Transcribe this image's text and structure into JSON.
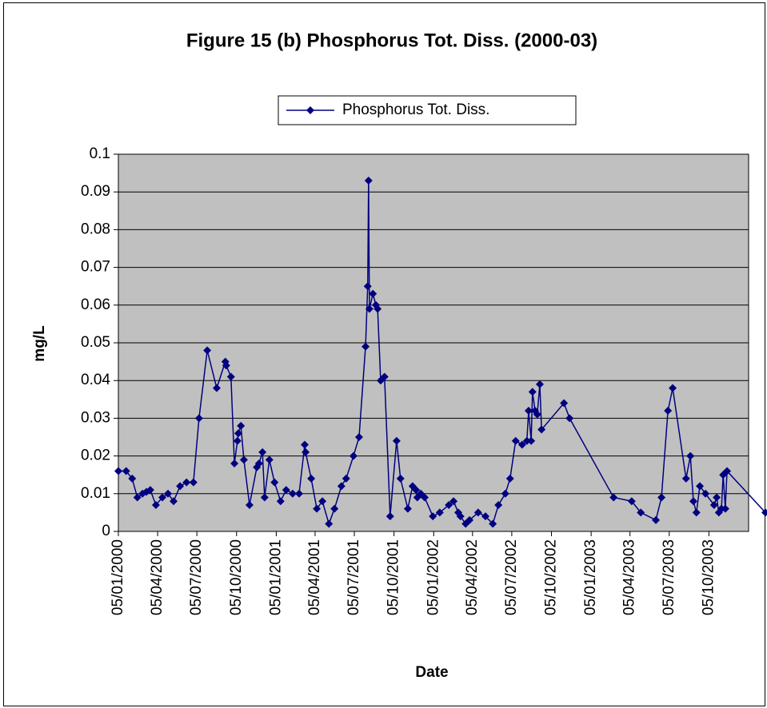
{
  "chart_data": {
    "type": "line",
    "title": "Figure 15 (b) Phosphorus Tot. Diss. (2000-03)",
    "x_label": "Date",
    "y_label": "mg/L",
    "x": [
      "05/01/2000",
      "23/01/2000",
      "06/02/2000",
      "18/02/2000",
      "01/03/2000",
      "10/03/2000",
      "19/03/2000",
      "01/04/2000",
      "16/04/2000",
      "29/04/2000",
      "12/05/2000",
      "27/05/2000",
      "11/06/2000",
      "27/06/2000",
      "10/07/2000",
      "29/07/2000",
      "20/08/2000",
      "09/09/2000",
      "11/09/2000",
      "22/09/2000",
      "30/09/2000",
      "07/10/2000",
      "09/10/2000",
      "15/10/2000",
      "22/10/2000",
      "04/11/2000",
      "21/11/2000",
      "26/11/2000",
      "04/12/2000",
      "09/12/2000",
      "20/12/2000",
      "01/01/2001",
      "15/01/2001",
      "28/01/2001",
      "12/02/2001",
      "27/02/2001",
      "12/03/2001",
      "14/03/2001",
      "27/03/2001",
      "09/04/2001",
      "22/04/2001",
      "07/05/2001",
      "20/05/2001",
      "05/06/2001",
      "16/06/2001",
      "03/07/2001",
      "16/07/2001",
      "31/07/2001",
      "05/08/2001",
      "07/08/2001",
      "09/08/2001",
      "17/08/2001",
      "24/08/2001",
      "28/08/2001",
      "04/09/2001",
      "13/09/2001",
      "26/09/2001",
      "11/10/2001",
      "20/10/2001",
      "06/11/2001",
      "17/11/2001",
      "25/11/2001",
      "28/11/2001",
      "06/12/2001",
      "15/12/2001",
      "03/01/2002",
      "19/01/2002",
      "09/02/2002",
      "20/02/2002",
      "03/03/2002",
      "08/03/2002",
      "20/03/2002",
      "29/03/2002",
      "18/04/2002",
      "05/05/2002",
      "22/05/2002",
      "04/06/2002",
      "20/06/2002",
      "01/07/2002",
      "14/07/2002",
      "29/07/2002",
      "09/08/2002",
      "13/08/2002",
      "19/08/2002",
      "22/08/2002",
      "28/08/2002",
      "02/09/2002",
      "08/09/2002",
      "12/09/2002",
      "03/11/2002",
      "16/11/2002",
      "26/02/2003",
      "09/04/2003",
      "30/04/2003",
      "04/06/2003",
      "17/06/2003",
      "02/07/2003",
      "13/07/2003",
      "13/08/2003",
      "23/08/2003",
      "30/08/2003",
      "06/09/2003",
      "14/09/2003",
      "27/09/2003",
      "17/10/2003",
      "23/10/2003",
      "28/10/2003",
      "03/11/2003",
      "07/11/2003",
      "12/11/2003",
      "16/11/2003",
      "13/02/2004"
    ],
    "series": [
      {
        "name": "Phosphorus Tot. Diss.",
        "color": "#000080",
        "values": [
          0.016,
          0.016,
          0.014,
          0.009,
          0.01,
          0.0105,
          0.011,
          0.007,
          0.009,
          0.01,
          0.008,
          0.012,
          0.013,
          0.013,
          0.03,
          0.048,
          0.038,
          0.045,
          0.044,
          0.041,
          0.018,
          0.024,
          0.026,
          0.028,
          0.019,
          0.007,
          0.017,
          0.018,
          0.021,
          0.009,
          0.019,
          0.013,
          0.008,
          0.011,
          0.01,
          0.01,
          0.023,
          0.021,
          0.014,
          0.006,
          0.008,
          0.002,
          0.006,
          0.012,
          0.014,
          0.02,
          0.025,
          0.049,
          0.065,
          0.093,
          0.059,
          0.063,
          0.06,
          0.059,
          0.04,
          0.041,
          0.004,
          0.024,
          0.014,
          0.006,
          0.012,
          0.011,
          0.009,
          0.01,
          0.009,
          0.004,
          0.005,
          0.007,
          0.008,
          0.005,
          0.004,
          0.002,
          0.003,
          0.005,
          0.004,
          0.002,
          0.007,
          0.01,
          0.014,
          0.024,
          0.023,
          0.024,
          0.032,
          0.024,
          0.037,
          0.032,
          0.031,
          0.039,
          0.027,
          0.034,
          0.03,
          0.009,
          0.008,
          0.005,
          0.003,
          0.009,
          0.032,
          0.038,
          0.014,
          0.02,
          0.008,
          0.005,
          0.012,
          0.01,
          0.007,
          0.009,
          0.005,
          0.006,
          0.015,
          0.006,
          0.016,
          0.005
        ]
      }
    ],
    "xlim": [
      "05/01/2000",
      "05/01/2004"
    ],
    "xticks": [
      "05/01/2000",
      "05/04/2000",
      "05/07/2000",
      "05/10/2000",
      "05/01/2001",
      "05/04/2001",
      "05/07/2001",
      "05/10/2001",
      "05/01/2002",
      "05/04/2002",
      "05/07/2002",
      "05/10/2002",
      "05/01/2003",
      "05/04/2003",
      "05/07/2003",
      "05/10/2003"
    ],
    "ylim": [
      0,
      0.1
    ],
    "yticks": [
      0,
      0.01,
      0.02,
      0.03,
      0.04,
      0.05,
      0.06,
      0.07,
      0.08,
      0.09,
      0.1
    ],
    "grid": true,
    "legend": "top"
  }
}
